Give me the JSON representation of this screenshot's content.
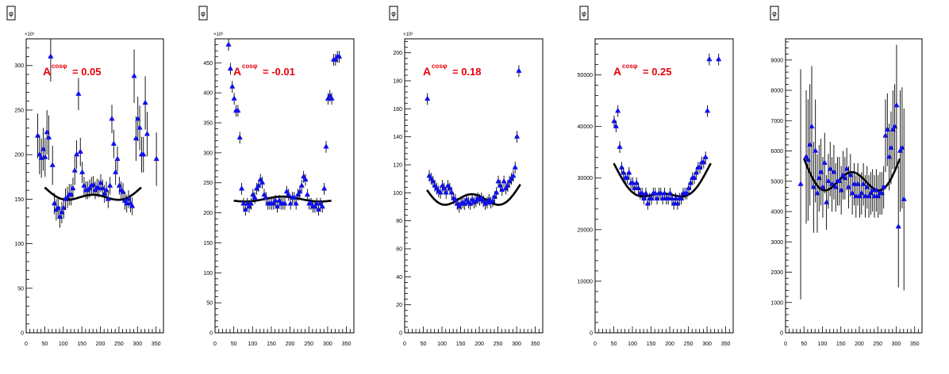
{
  "colors": {
    "points": "#1010ee",
    "errors": "#000000",
    "fit": "#000000",
    "annotation": "#e8000b",
    "frame": "#000000"
  },
  "icons": [
    "phi-tag-icon"
  ],
  "panels": [
    {
      "tag": "φ",
      "annotation": {
        "symbol": "A",
        "superscript": "cosφ",
        "text": "= 0.05"
      },
      "chart_data": {
        "type": "scatter",
        "xlim": [
          0,
          370
        ],
        "ylim": [
          0,
          330
        ],
        "x_ticks": [
          0,
          50,
          100,
          150,
          200,
          250,
          300,
          350
        ],
        "y_ticks": [
          50,
          100,
          150,
          200,
          250,
          300
        ],
        "y_exponent": "×10³",
        "fit": {
          "x_range": [
            50,
            310
          ],
          "a": 158,
          "b": 10,
          "c": 7
        },
        "series": [
          {
            "x": [
              31,
              36,
              41,
              46,
              51,
              56,
              61,
              66,
              71,
              76,
              81,
              86,
              91,
              96,
              101,
              106,
              111,
              116,
              121,
              126,
              131,
              136,
              141,
              146,
              151,
              156,
              161,
              166,
              171,
              176,
              181,
              186,
              191,
              196,
              201,
              206,
              211,
              216,
              221,
              226,
              231,
              236,
              241,
              246,
              251,
              256,
              261,
              266,
              271,
              276,
              281,
              286,
              291,
              296,
              301,
              306,
              311,
              316,
              321,
              326,
              351
            ],
            "y": [
              221,
              200,
              196,
              206,
              197,
              225,
              219,
              310,
              188,
              145,
              138,
              140,
              130,
              135,
              140,
              150,
              152,
              155,
              155,
              162,
              182,
              200,
              268,
              203,
              180,
              165,
              160,
              160,
              162,
              165,
              166,
              160,
              163,
              162,
              168,
              162,
              156,
              160,
              150,
              165,
              240,
              212,
              180,
              195,
              165,
              160,
              158,
              148,
              145,
              150,
              145,
              142,
              288,
              218,
              240,
              230,
              200,
              200,
              258,
              223,
              195
            ],
            "err": [
              25,
              22,
              22,
              24,
              22,
              25,
              25,
              28,
              22,
              12,
              12,
              12,
              12,
              12,
              12,
              12,
              12,
              12,
              12,
              12,
              16,
              16,
              18,
              16,
              12,
              10,
              10,
              10,
              10,
              10,
              10,
              10,
              10,
              10,
              10,
              10,
              10,
              10,
              10,
              10,
              16,
              16,
              14,
              14,
              10,
              10,
              10,
              10,
              10,
              10,
              10,
              10,
              30,
              25,
              25,
              25,
              20,
              20,
              30,
              25,
              30
            ]
          }
        ]
      }
    },
    {
      "tag": "φ",
      "annotation": {
        "symbol": "A",
        "superscript": "cosφ",
        "text": "= -0.01"
      },
      "chart_data": {
        "type": "scatter",
        "xlim": [
          0,
          370
        ],
        "ylim": [
          0,
          490
        ],
        "x_ticks": [
          0,
          50,
          100,
          150,
          200,
          250,
          300,
          350
        ],
        "y_ticks": [
          50,
          100,
          150,
          200,
          250,
          300,
          350,
          400,
          450
        ],
        "y_exponent": "×10³",
        "fit": {
          "x_range": [
            50,
            310
          ],
          "a": 222,
          "b": -2,
          "c": 3
        },
        "series": [
          {
            "x": [
              36,
              41,
              46,
              51,
              56,
              61,
              66,
              71,
              76,
              81,
              86,
              91,
              96,
              101,
              106,
              111,
              116,
              121,
              126,
              131,
              136,
              141,
              146,
              151,
              156,
              161,
              166,
              171,
              176,
              181,
              186,
              191,
              196,
              201,
              206,
              211,
              216,
              221,
              226,
              231,
              236,
              241,
              246,
              251,
              256,
              261,
              266,
              271,
              276,
              281,
              286,
              291,
              296,
              301,
              306,
              311,
              316,
              321,
              326,
              331
            ],
            "y": [
              480,
              440,
              410,
              390,
              370,
              370,
              325,
              240,
              215,
              205,
              215,
              210,
              215,
              230,
              225,
              240,
              245,
              255,
              250,
              230,
              225,
              215,
              215,
              215,
              215,
              220,
              210,
              220,
              215,
              215,
              215,
              235,
              230,
              215,
              225,
              225,
              215,
              230,
              235,
              245,
              260,
              255,
              230,
              215,
              215,
              210,
              210,
              215,
              205,
              215,
              210,
              240,
              310,
              390,
              395,
              390,
              455,
              455,
              460,
              460
            ]
          }
        ]
      }
    },
    {
      "tag": "φ",
      "annotation": {
        "symbol": "A",
        "superscript": "cosφ",
        "text": "= 0.18"
      },
      "chart_data": {
        "type": "scatter",
        "xlim": [
          0,
          370
        ],
        "ylim": [
          0,
          210
        ],
        "x_ticks": [
          0,
          50,
          100,
          150,
          200,
          250,
          300,
          350
        ],
        "y_ticks": [
          20,
          40,
          60,
          80,
          100,
          120,
          140,
          160,
          180,
          200
        ],
        "y_exponent": "×10³",
        "fit": {
          "x_range": [
            60,
            310
          ],
          "a": 101,
          "b": 10,
          "c": 8
        },
        "series": [
          {
            "x": [
              61,
              66,
              71,
              76,
              81,
              86,
              91,
              96,
              101,
              106,
              111,
              116,
              121,
              126,
              131,
              136,
              141,
              146,
              151,
              156,
              161,
              166,
              171,
              176,
              181,
              186,
              191,
              196,
              201,
              206,
              211,
              216,
              221,
              226,
              231,
              236,
              241,
              246,
              251,
              256,
              261,
              266,
              271,
              276,
              281,
              286,
              291,
              296,
              301,
              306
            ],
            "y": [
              167,
              112,
              110,
              108,
              105,
              103,
              101,
              100,
              105,
              103,
              100,
              105,
              103,
              100,
              96,
              95,
              92,
              90,
              92,
              93,
              92,
              95,
              93,
              92,
              95,
              93,
              94,
              96,
              95,
              96,
              94,
              92,
              93,
              95,
              93,
              94,
              97,
              100,
              108,
              105,
              102,
              108,
              103,
              105,
              108,
              110,
              112,
              118,
              140,
              187
            ]
          }
        ]
      }
    },
    {
      "tag": "φ",
      "annotation": {
        "symbol": "A",
        "superscript": "cosφ",
        "text": "= 0.25"
      },
      "chart_data": {
        "type": "scatter",
        "xlim": [
          0,
          370
        ],
        "ylim": [
          0,
          57000
        ],
        "x_ticks": [
          0,
          50,
          100,
          150,
          200,
          250,
          300,
          350
        ],
        "y_ticks": [
          10000,
          20000,
          30000,
          40000,
          50000
        ],
        "fit": {
          "x_range": [
            50,
            310
          ],
          "a": 30000,
          "b": 5000,
          "c": 2000
        },
        "series": [
          {
            "x": [
              51,
              56,
              61,
              66,
              71,
              76,
              81,
              86,
              91,
              96,
              101,
              106,
              111,
              116,
              121,
              126,
              131,
              136,
              141,
              146,
              151,
              156,
              161,
              166,
              171,
              176,
              181,
              186,
              191,
              196,
              201,
              206,
              211,
              216,
              221,
              226,
              231,
              236,
              241,
              246,
              251,
              256,
              261,
              266,
              271,
              276,
              281,
              286,
              291,
              296,
              301,
              306,
              331
            ],
            "y": [
              41000,
              40000,
              43000,
              36000,
              32000,
              31000,
              30000,
              30000,
              31000,
              29000,
              29000,
              28000,
              29000,
              28000,
              27000,
              27000,
              26000,
              27000,
              25000,
              26000,
              26000,
              27000,
              27000,
              26000,
              27000,
              27000,
              26000,
              27000,
              26000,
              26000,
              27000,
              26000,
              25000,
              26000,
              25000,
              26000,
              26000,
              27000,
              27000,
              27000,
              28000,
              29000,
              30000,
              30000,
              31000,
              32000,
              32000,
              33000,
              33000,
              34000,
              43000,
              53000,
              53000
            ]
          }
        ]
      }
    },
    {
      "tag": "φ",
      "chart_data": {
        "type": "scatter",
        "xlim": [
          0,
          370
        ],
        "ylim": [
          0,
          9700
        ],
        "x_ticks": [
          0,
          50,
          100,
          150,
          200,
          250,
          300,
          350
        ],
        "y_ticks": [
          1000,
          2000,
          3000,
          4000,
          5000,
          6000,
          7000,
          8000,
          9000
        ],
        "fit": {
          "x_range": [
            50,
            310
          ],
          "a": 5400,
          "b": 700,
          "c": 600
        },
        "series": [
          {
            "x": [
              41,
              56,
              61,
              66,
              71,
              76,
              81,
              86,
              91,
              96,
              101,
              106,
              111,
              116,
              121,
              126,
              131,
              136,
              141,
              146,
              151,
              156,
              161,
              166,
              171,
              176,
              181,
              186,
              191,
              196,
              201,
              206,
              211,
              216,
              221,
              226,
              231,
              236,
              241,
              246,
              251,
              256,
              261,
              266,
              271,
              276,
              281,
              286,
              291,
              296,
              301,
              306,
              311,
              316,
              321
            ],
            "y": [
              4900,
              5800,
              5700,
              6200,
              6800,
              4800,
              6000,
              4600,
              5100,
              5300,
              4800,
              5600,
              4300,
              5000,
              5400,
              4900,
              5300,
              4800,
              5000,
              5000,
              4700,
              5200,
              5100,
              5400,
              4800,
              5200,
              4600,
              4900,
              4500,
              4900,
              4500,
              4600,
              4900,
              4500,
              4800,
              4500,
              4600,
              4700,
              4500,
              4700,
              4500,
              4600,
              4600,
              4800,
              6500,
              6700,
              5800,
              6100,
              6700,
              6800,
              7500,
              3500,
              6000,
              6100,
              4400
            ],
            "err": [
              3800,
              2200,
              2000,
              2000,
              2000,
              1500,
              1700,
              1300,
              1100,
              1100,
              1000,
              1000,
              900,
              900,
              900,
              900,
              900,
              800,
              800,
              800,
              800,
              800,
              700,
              700,
              700,
              700,
              700,
              700,
              700,
              700,
              700,
              700,
              700,
              700,
              700,
              700,
              700,
              700,
              700,
              700,
              700,
              700,
              700,
              700,
              1200,
              1200,
              1100,
              1200,
              1300,
              1400,
              2000,
              2000,
              2000,
              2000,
              3000
            ]
          }
        ]
      }
    }
  ]
}
